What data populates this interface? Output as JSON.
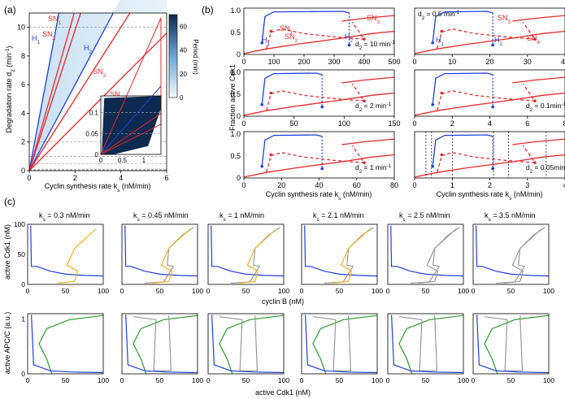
{
  "panel_labels": {
    "a": "(a)",
    "b": "(b)",
    "c": "(c)"
  },
  "colors": {
    "blue": "#1f3fe0",
    "red": "#e8282a",
    "orange": "#f0b020",
    "gray": "#999999",
    "green": "#2a9a2a",
    "dark": "#0d2a50",
    "gridgray": "#999999"
  },
  "chart_data": [
    {
      "id": "a",
      "type": "area",
      "xlabel": "Cyclin synthesis rate k",
      "xlabel_sub": "s",
      "xlabel_unit": " (nM/min)",
      "ylabel": "Degradation rate d",
      "ylabel_sub": "2",
      "ylabel_unit": " (min",
      "ylabel_sup": "-1",
      "ylabel_close": ")",
      "xlim": [
        0,
        6
      ],
      "ylim": [
        0,
        11
      ],
      "xticks": [
        "0",
        "2",
        "4",
        "6"
      ],
      "yticks": [
        "0",
        "2",
        "4",
        "6",
        "8",
        "10"
      ],
      "ytick_vals": [
        0,
        2,
        4,
        6,
        8,
        10
      ],
      "dashed_levels": [
        0.05,
        0.1,
        0.5,
        1,
        2,
        10
      ],
      "lines": [
        {
          "name": "H1",
          "label": "H",
          "sub": "1",
          "color": "blue",
          "slope": 8.5
        },
        {
          "name": "SN1",
          "label": "SN",
          "sub": "1",
          "color": "red",
          "slope": 5.6
        },
        {
          "name": "SN2",
          "label": "SN",
          "sub": "2",
          "color": "red",
          "slope": 4.9
        },
        {
          "name": "H2",
          "label": "H",
          "sub": "2",
          "color": "blue",
          "slope": 3.0
        },
        {
          "name": "SN3",
          "label": "SN",
          "sub": "3",
          "color": "red",
          "slope": 2.5
        },
        {
          "name": "SN4",
          "label": "SN",
          "sub": "4",
          "color": "red",
          "slope": 1.6
        }
      ],
      "colorbar": {
        "label": "Period (min)",
        "ticks": [
          "0",
          "20",
          "40",
          "60"
        ]
      },
      "inset": {
        "xlim": [
          0,
          1.4
        ],
        "ylim": [
          0,
          0.14
        ],
        "xticks": [
          "0",
          "0.5",
          "1"
        ],
        "yticks": [
          "0",
          "0.05",
          "0.1"
        ]
      }
    },
    {
      "id": "b",
      "type": "line",
      "ylabel": "Fraction active Cdk1",
      "xlabel": "Cyclin synthesis rate k",
      "xlabel_sub": "s",
      "xlabel_unit": " (nM/min)",
      "subplots": [
        {
          "d2": "d",
          "d2_sub": "2",
          "d2_val": " = 10 min",
          "d2_sup": "-1",
          "xlim": [
            0,
            500
          ],
          "xticks": [
            "0",
            "100",
            "200",
            "300",
            "400",
            "500"
          ],
          "yticks": [
            "0",
            "0.5",
            "1.0"
          ],
          "labels": [
            "SN1",
            "SN2",
            "SN3",
            "H1",
            "H2"
          ]
        },
        {
          "d2": "d",
          "d2_sub": "2",
          "d2_val": " = 0.5 min",
          "d2_sup": "-1",
          "xlim": [
            0,
            40
          ],
          "xticks": [
            "0",
            "10",
            "20",
            "30",
            "40"
          ],
          "yticks": [
            "0",
            "0.5",
            "1.0"
          ],
          "labels": [
            "SN3",
            "SN4",
            "H1",
            "H2"
          ]
        },
        {
          "d2": "d",
          "d2_sub": "2",
          "d2_val": " = 2 min",
          "d2_sup": "-1",
          "xlim": [
            0,
            150
          ],
          "xticks": [
            "0",
            "50",
            "100",
            "150"
          ],
          "yticks": [
            "0",
            "0.5",
            "1.0"
          ]
        },
        {
          "d2": "d",
          "d2_sub": "2",
          "d2_val": " = 0.1min",
          "d2_sup": "-1",
          "xlim": [
            0,
            8
          ],
          "xticks": [
            "0",
            "2",
            "4",
            "6",
            "8"
          ],
          "yticks": [
            "0",
            "0.5",
            "1.0"
          ]
        },
        {
          "d2": "d",
          "d2_sub": "2",
          "d2_val": " = 1 min",
          "d2_sup": "-1",
          "xlim": [
            0,
            80
          ],
          "xticks": [
            "0",
            "20",
            "40",
            "60",
            "80"
          ],
          "yticks": [
            "0",
            "0.5",
            "1.0"
          ]
        },
        {
          "d2": "d",
          "d2_sub": "2",
          "d2_val": " = 0.05min",
          "d2_sup": "-1",
          "xlim": [
            0,
            4
          ],
          "xticks": [
            "0",
            "1",
            "2",
            "3",
            "4"
          ],
          "yticks": [
            "0",
            "0.5",
            "1.0"
          ],
          "vlines": [
            0.3,
            0.45,
            1,
            2.1,
            2.5,
            3.5
          ]
        }
      ]
    },
    {
      "id": "c",
      "type": "line",
      "ylabel_top": "active Cdk1 (nM)",
      "xlabel_top": "cyclin B (nM)",
      "ylabel_bottom": "active APC/C (a.u.)",
      "xlabel_bottom": "active Cdk1 (nM)",
      "xticks": [
        "0",
        "50",
        "100"
      ],
      "yticks_top": [
        "0",
        "50",
        "100"
      ],
      "yticks_bottom": [
        "0",
        "1"
      ],
      "ks_label": "k",
      "ks_sub": "s",
      "ks_values": [
        " = 0.3 nM/min",
        " = 0.45 nM/min",
        " = 1 nM/min",
        " = 2.1 nM/min",
        " = 2.5 nM/min",
        " = 3.5 nM/min"
      ]
    }
  ]
}
